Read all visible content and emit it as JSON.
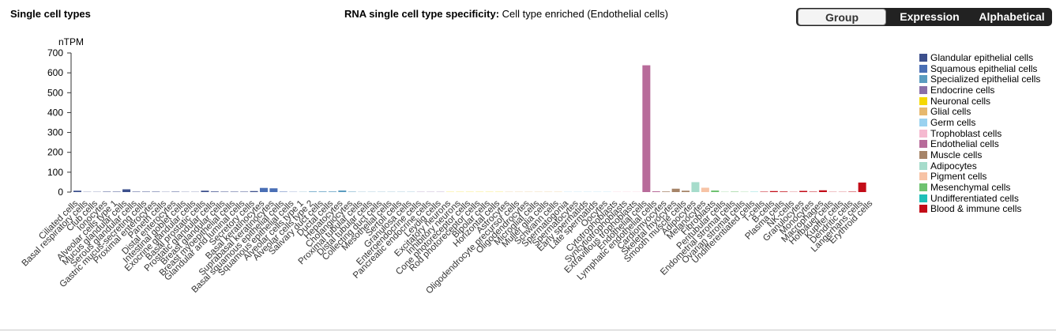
{
  "section_title": "Single cell types",
  "chart_heading": {
    "label": "RNA single cell type specificity:",
    "value": "Cell type enriched (Endothelial cells)"
  },
  "view_options": [
    "Group",
    "Expression",
    "Alphabetical"
  ],
  "active_view": "Group",
  "colors": {
    "Glandular epithelial cells": "#3c4f8c",
    "Squamous epithelial cells": "#4a6fb5",
    "Specialized epithelial cells": "#5a9cc0",
    "Endocrine cells": "#8a6fa8",
    "Neuronal cells": "#f5d800",
    "Glial cells": "#e6b86e",
    "Germ cells": "#9ad2f0",
    "Trophoblast cells": "#f5b9d0",
    "Endothelial cells": "#b86b9a",
    "Muscle cells": "#a68468",
    "Adipocytes": "#a6dccb",
    "Pigment cells": "#f7c3a6",
    "Mesenchymal cells": "#6ec270",
    "Undifferentiated cells": "#1fbfb8",
    "Blood & immune cells": "#c30c18"
  },
  "chart_data": {
    "type": "bar",
    "ylabel": "nTPM",
    "ylim": [
      0,
      700
    ],
    "yticks": [
      0,
      100,
      200,
      300,
      400,
      500,
      600,
      700
    ],
    "categories": [
      "Ciliated cells",
      "Basal respiratory cells",
      "Club cells",
      "Ionocytes",
      "Alveolar cells type 1",
      "Mucus glandular cells",
      "Serous glandular cells",
      "Gastric mucus-secreting cells",
      "Proximal enterocytes",
      "Paneth cells",
      "Distal enterocytes",
      "Intestinal goblet cells",
      "Exocrine glandular cells",
      "Basal prostatic cells",
      "Prostatic glandular cells",
      "Breast glandular cells",
      "Breast myoepithelial cells",
      "Glandular and luminal cells",
      "Secretory cells",
      "Basal keratinocytes",
      "Suprabasal keratinocytes",
      "Basal squamous epithelial cells",
      "Squamous epithelial cells",
      "Alveolar cells type 1",
      "Alveolar cells type 2",
      "Salivary duct cells",
      "Ductal cells",
      "Hepatocytes",
      "Cholangiocytes",
      "Proximal tubular cells",
      "Distal tubular cells",
      "Collecting duct cells",
      "Mesothelial cells",
      "Sertoli cells",
      "Granulosa cells",
      "Enteroendocrine cells",
      "Pancreatic endocrine cells",
      "Leydig cells",
      "Excitatory neurons",
      "Inhibitory neurons",
      "Cone photoreceptor cells",
      "Rod photoreceptor cells",
      "Bipolar cells",
      "Horizontal cells",
      "Astrocytes",
      "Oligodendrocyte precursor cells",
      "Oligodendrocytes",
      "Microglial cells",
      "Muller glia cells",
      "Schwann cells",
      "Spermatogonia",
      "Spermatocytes",
      "Early spermatids",
      "Late spermatids",
      "Oocytes",
      "Cytotrophoblasts",
      "Syncytiotrophoblasts",
      "Extravillous trophoblasts",
      "Endothelial cells",
      "Lymphatic endothelial cells",
      "Cardiomyocytes",
      "Skeletal myocytes",
      "Smooth muscle cells",
      "Adipocytes",
      "Melanocytes",
      "Fibroblasts",
      "Peritubular cells",
      "Endometrial stromal cells",
      "Ovarian stromal cells",
      "Undifferentiated cells",
      "T-cells",
      "B-cells",
      "Plasma cells",
      "NK-cells",
      "Granulocytes",
      "Monocytes",
      "Macrophages",
      "Hofbauer cells",
      "Kupffer cells",
      "Dendritic cells",
      "Langerhans cells",
      "Erythroid cells"
    ],
    "groups": [
      "Glandular epithelial cells",
      "Glandular epithelial cells",
      "Glandular epithelial cells",
      "Glandular epithelial cells",
      "Glandular epithelial cells",
      "Glandular epithelial cells",
      "Glandular epithelial cells",
      "Glandular epithelial cells",
      "Glandular epithelial cells",
      "Glandular epithelial cells",
      "Glandular epithelial cells",
      "Glandular epithelial cells",
      "Glandular epithelial cells",
      "Glandular epithelial cells",
      "Glandular epithelial cells",
      "Glandular epithelial cells",
      "Glandular epithelial cells",
      "Glandular epithelial cells",
      "Glandular epithelial cells",
      "Squamous epithelial cells",
      "Squamous epithelial cells",
      "Squamous epithelial cells",
      "Squamous epithelial cells",
      "Specialized epithelial cells",
      "Specialized epithelial cells",
      "Specialized epithelial cells",
      "Specialized epithelial cells",
      "Specialized epithelial cells",
      "Specialized epithelial cells",
      "Specialized epithelial cells",
      "Specialized epithelial cells",
      "Specialized epithelial cells",
      "Specialized epithelial cells",
      "Specialized epithelial cells",
      "Specialized epithelial cells",
      "Endocrine cells",
      "Endocrine cells",
      "Endocrine cells",
      "Neuronal cells",
      "Neuronal cells",
      "Neuronal cells",
      "Neuronal cells",
      "Neuronal cells",
      "Neuronal cells",
      "Glial cells",
      "Glial cells",
      "Glial cells",
      "Glial cells",
      "Glial cells",
      "Glial cells",
      "Germ cells",
      "Germ cells",
      "Germ cells",
      "Germ cells",
      "Germ cells",
      "Trophoblast cells",
      "Trophoblast cells",
      "Trophoblast cells",
      "Endothelial cells",
      "Endothelial cells",
      "Muscle cells",
      "Muscle cells",
      "Muscle cells",
      "Adipocytes",
      "Pigment cells",
      "Mesenchymal cells",
      "Mesenchymal cells",
      "Mesenchymal cells",
      "Mesenchymal cells",
      "Undifferentiated cells",
      "Blood & immune cells",
      "Blood & immune cells",
      "Blood & immune cells",
      "Blood & immune cells",
      "Blood & immune cells",
      "Blood & immune cells",
      "Blood & immune cells",
      "Blood & immune cells",
      "Blood & immune cells",
      "Blood & immune cells",
      "Blood & immune cells",
      "Blood & immune cells"
    ],
    "values": [
      7,
      1,
      1,
      2,
      2,
      14,
      2,
      2,
      2,
      1,
      2,
      1,
      1,
      7,
      3,
      2,
      2,
      2,
      5,
      21,
      19,
      2,
      1,
      1,
      3,
      3,
      3,
      8,
      2,
      1,
      1,
      1,
      1,
      1,
      1,
      1,
      1,
      1,
      1,
      1,
      1,
      1,
      1,
      1,
      1,
      1,
      1,
      1,
      1,
      1,
      1,
      1,
      1,
      1,
      1,
      1,
      1,
      1,
      638,
      4,
      3,
      17,
      7,
      50,
      22,
      8,
      1,
      2,
      1,
      1,
      2,
      5,
      3,
      1,
      6,
      2,
      9,
      1,
      1,
      2,
      48,
      0
    ],
    "legend": [
      "Glandular epithelial cells",
      "Squamous epithelial cells",
      "Specialized epithelial cells",
      "Endocrine cells",
      "Neuronal cells",
      "Glial cells",
      "Germ cells",
      "Trophoblast cells",
      "Endothelial cells",
      "Muscle cells",
      "Adipocytes",
      "Pigment cells",
      "Mesenchymal cells",
      "Undifferentiated cells",
      "Blood & immune cells"
    ]
  }
}
